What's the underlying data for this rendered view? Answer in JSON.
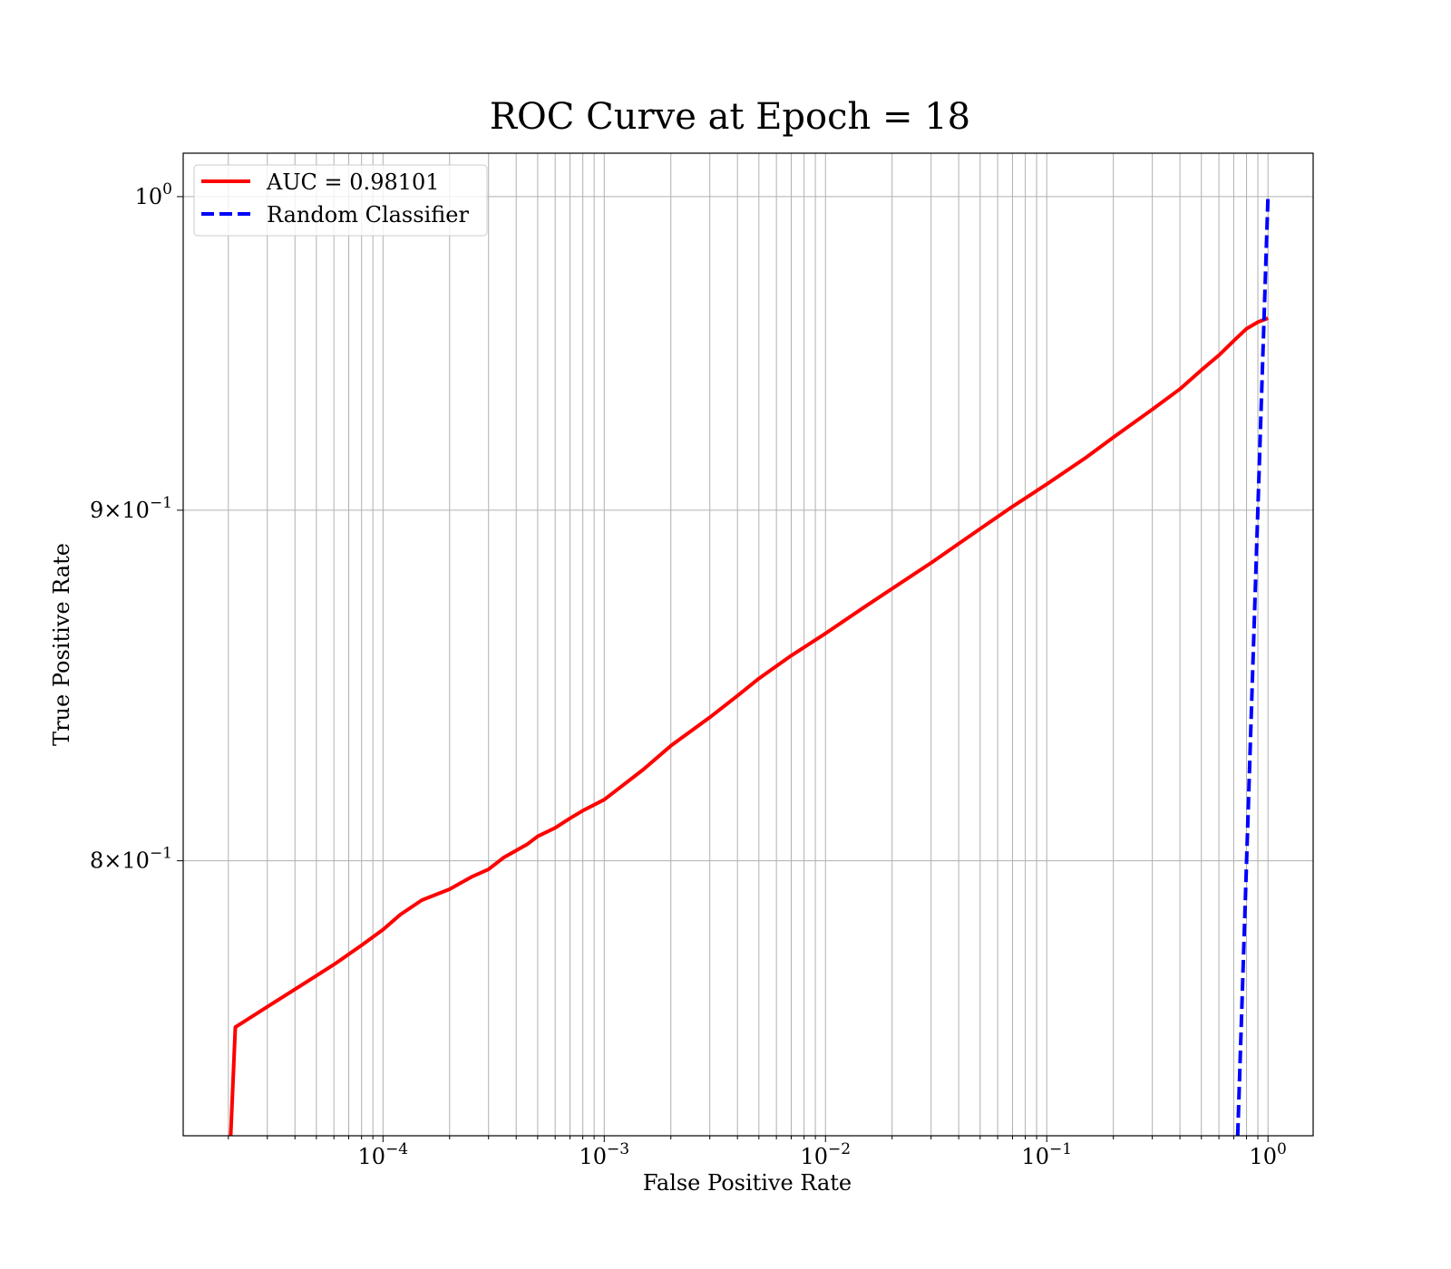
{
  "chart_data": {
    "type": "line",
    "title": "ROC Curve at Epoch = 18",
    "xlabel": "False Positive Rate",
    "ylabel": "True Positive Rate",
    "xscale": "log",
    "yscale": "log",
    "xlim": [
      1.25e-05,
      1.6
    ],
    "ylim": [
      0.7294,
      1.0147
    ],
    "grid": true,
    "grid_which": "both",
    "legend_position": "upper-left",
    "x_major_ticks": [
      {
        "value": 0.0001,
        "base": "10",
        "exp": "−4"
      },
      {
        "value": 0.001,
        "base": "10",
        "exp": "−3"
      },
      {
        "value": 0.01,
        "base": "10",
        "exp": "−2"
      },
      {
        "value": 0.1,
        "base": "10",
        "exp": "−1"
      },
      {
        "value": 1,
        "base": "10",
        "exp": "0"
      }
    ],
    "y_ticks": [
      {
        "value": 1.0,
        "mantissa": "",
        "base": "10",
        "exp": "0"
      },
      {
        "value": 0.9,
        "mantissa": "9",
        "base": "10",
        "exp": "−1"
      },
      {
        "value": 0.8,
        "mantissa": "8",
        "base": "10",
        "exp": "−1"
      }
    ],
    "series": [
      {
        "name": "AUC = 0.98101",
        "color": "#ff0000",
        "style": "solid",
        "x": [
          2.05e-05,
          2.15e-05,
          3e-05,
          4e-05,
          5e-05,
          6e-05,
          8e-05,
          0.0001,
          0.00012,
          0.00015,
          0.0002,
          0.00025,
          0.0003,
          0.00035,
          0.00045,
          0.0005,
          0.0006,
          0.0007,
          0.0008,
          0.001,
          0.0012,
          0.0015,
          0.002,
          0.003,
          0.004,
          0.005,
          0.007,
          0.01,
          0.015,
          0.02,
          0.03,
          0.05,
          0.07,
          0.1,
          0.15,
          0.2,
          0.3,
          0.4,
          0.5,
          0.6,
          0.7,
          0.8,
          0.9,
          1.0
        ],
        "y": [
          0.7294,
          0.7565,
          0.7617,
          0.7662,
          0.7697,
          0.7726,
          0.7776,
          0.7817,
          0.7857,
          0.7895,
          0.7924,
          0.7956,
          0.7977,
          0.8008,
          0.8045,
          0.8066,
          0.8089,
          0.8115,
          0.8136,
          0.8166,
          0.8203,
          0.8249,
          0.8315,
          0.8395,
          0.8456,
          0.8505,
          0.8571,
          0.8635,
          0.8712,
          0.8766,
          0.8842,
          0.8944,
          0.9011,
          0.9079,
          0.916,
          0.9223,
          0.931,
          0.9374,
          0.9434,
          0.9481,
          0.9527,
          0.9566,
          0.9587,
          0.96
        ]
      },
      {
        "name": "Random Classifier",
        "color": "#0000ff",
        "style": "dashed",
        "x": [
          0.7294,
          0.8,
          0.9,
          1.0
        ],
        "y": [
          0.7294,
          0.8,
          0.9,
          1.0
        ]
      }
    ]
  }
}
